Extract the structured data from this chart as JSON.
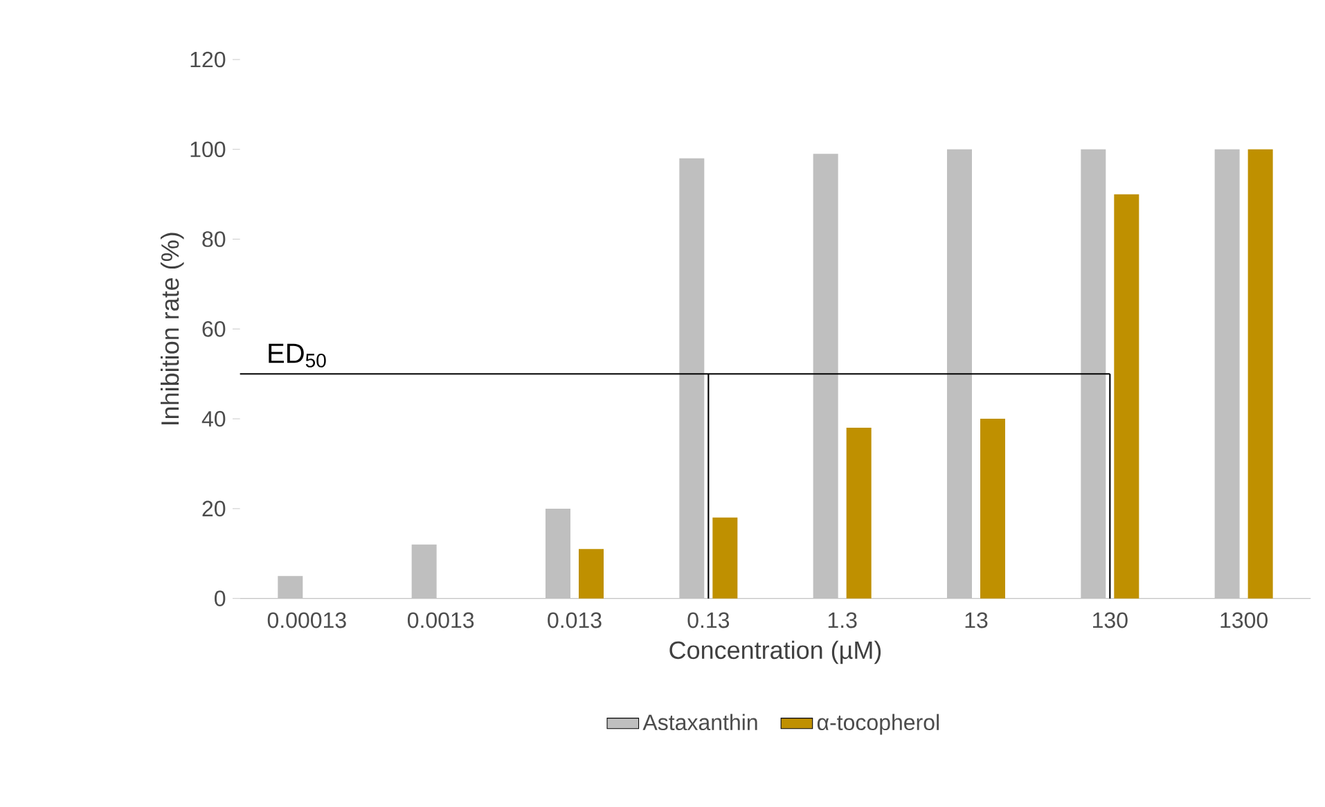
{
  "chart_data": {
    "type": "bar",
    "xlabel": "Concentration (µM)",
    "ylabel": "Inhibition rate (%)",
    "categories": [
      "0.00013",
      "0.0013",
      "0.013",
      "0.13",
      "1.3",
      "13",
      "130",
      "1300"
    ],
    "series": [
      {
        "name": "Astaxanthin",
        "color": "#bfbfbf",
        "values": [
          5,
          12,
          20,
          98,
          99,
          100,
          100,
          100
        ]
      },
      {
        "name": "α-tocopherol",
        "color": "#bf9000",
        "values": [
          null,
          null,
          11,
          18,
          38,
          40,
          90,
          100
        ]
      }
    ],
    "ylim": [
      0,
      120
    ],
    "yticks": [
      0,
      20,
      40,
      60,
      80,
      100,
      120
    ],
    "ref_lines": [
      {
        "axis": "y",
        "value": 50,
        "label": "ED$_{50}$",
        "color": "#000000"
      },
      {
        "axis": "x",
        "value": "0.13",
        "color": "#000000"
      },
      {
        "axis": "x",
        "value": "130",
        "color": "#000000"
      }
    ],
    "grid": false,
    "legend": "bottom"
  }
}
